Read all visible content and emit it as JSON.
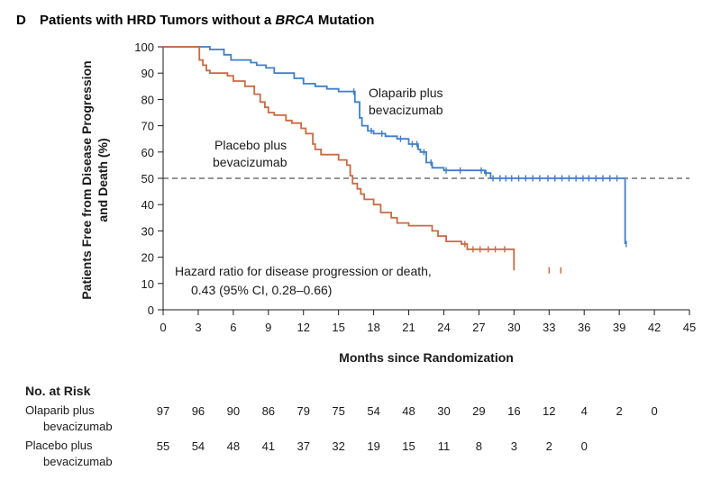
{
  "chart_data": {
    "type": "line",
    "panel_letter": "D",
    "title_pre": "Patients with HRD Tumors without a ",
    "title_italic": "BRCA",
    "title_post": " Mutation",
    "ylabel_line1": "Patients Free from Disease Progression",
    "ylabel_line2": "and Death (%)",
    "xlabel": "Months since Randomization",
    "xlim": [
      0,
      45
    ],
    "ylim": [
      0,
      100
    ],
    "xticks": [
      0,
      3,
      6,
      9,
      12,
      15,
      18,
      21,
      24,
      27,
      30,
      33,
      36,
      39,
      42,
      45
    ],
    "yticks": [
      0,
      10,
      20,
      30,
      40,
      50,
      60,
      70,
      80,
      90,
      100
    ],
    "reference_line": 50,
    "series": [
      {
        "name": "Olaparib plus bevacizumab",
        "label_line1": "Olaparib plus",
        "label_line2": "bevacizumab",
        "color": "#3f7fc8",
        "x": [
          0,
          3.2,
          4,
          5.2,
          5.8,
          7.5,
          8.0,
          8.8,
          9.5,
          11.2,
          12.0,
          13.0,
          14.0,
          15.0,
          16.4,
          16.8,
          17.0,
          17.5,
          18.0,
          19.0,
          20.0,
          21.0,
          21.8,
          22.0,
          22.5,
          23.0,
          24.0,
          27.5,
          28.0,
          39.3,
          39.5
        ],
        "y": [
          100,
          100,
          99,
          97,
          95,
          94,
          93,
          92,
          90,
          88,
          86,
          85,
          84,
          83,
          79,
          73,
          70,
          68,
          67,
          66,
          65,
          63,
          61,
          60,
          56,
          54,
          53,
          52,
          50,
          50,
          25
        ],
        "censor_x": [
          16.3,
          17.8,
          18.7,
          20.3,
          21.3,
          21.7,
          22.3,
          22.9,
          24.2,
          25.4,
          27.2,
          27.6,
          28.2,
          28.8,
          29.3,
          29.8,
          30.4,
          31.0,
          31.6,
          32.2,
          32.9,
          33.5,
          34.1,
          34.7,
          35.3,
          35.9,
          36.4,
          37.0,
          37.6,
          38.2,
          38.8,
          39.6
        ]
      },
      {
        "name": "Placebo plus bevacizumab",
        "label_line1": "Placebo plus",
        "label_line2": "bevacizumab",
        "color": "#c96a43",
        "x": [
          0,
          3.1,
          3.4,
          3.7,
          4.0,
          5.5,
          6.0,
          7.0,
          7.8,
          8.3,
          8.7,
          9.0,
          9.5,
          10.5,
          11.0,
          11.8,
          12.2,
          12.8,
          13.0,
          13.5,
          15.0,
          15.7,
          16.0,
          16.2,
          16.6,
          16.9,
          17.2,
          18.0,
          18.6,
          19.5,
          20.0,
          21.0,
          23.0,
          23.5,
          24.2,
          25.5,
          26.0,
          30.0
        ],
        "y": [
          100,
          95,
          93,
          91,
          90,
          89,
          87,
          85,
          82,
          79,
          77,
          75,
          74,
          72,
          71,
          69,
          67,
          63,
          61,
          59,
          57,
          55,
          51,
          48,
          46,
          44,
          42,
          40,
          37,
          35,
          33,
          32,
          30,
          28,
          26,
          25,
          23,
          15
        ],
        "censor_x": [
          25.8,
          26.5,
          27.1,
          27.8,
          28.4,
          29.2,
          33.0,
          34.0
        ]
      }
    ],
    "hazard_line1": "Hazard ratio for disease progression or death,",
    "hazard_line2": "0.43 (95% CI, 0.28–0.66)",
    "risk_table": {
      "title": "No. at Risk",
      "rows": [
        {
          "label_line1": "Olaparib plus",
          "label_line2": "bevacizumab",
          "values": [
            "97",
            "96",
            "90",
            "86",
            "79",
            "75",
            "54",
            "48",
            "30",
            "29",
            "16",
            "12",
            "4",
            "2",
            "0"
          ]
        },
        {
          "label_line1": "Placebo plus",
          "label_line2": "bevacizumab",
          "values": [
            "55",
            "54",
            "48",
            "41",
            "37",
            "32",
            "19",
            "15",
            "11",
            "8",
            "3",
            "2",
            "0"
          ]
        }
      ]
    }
  }
}
